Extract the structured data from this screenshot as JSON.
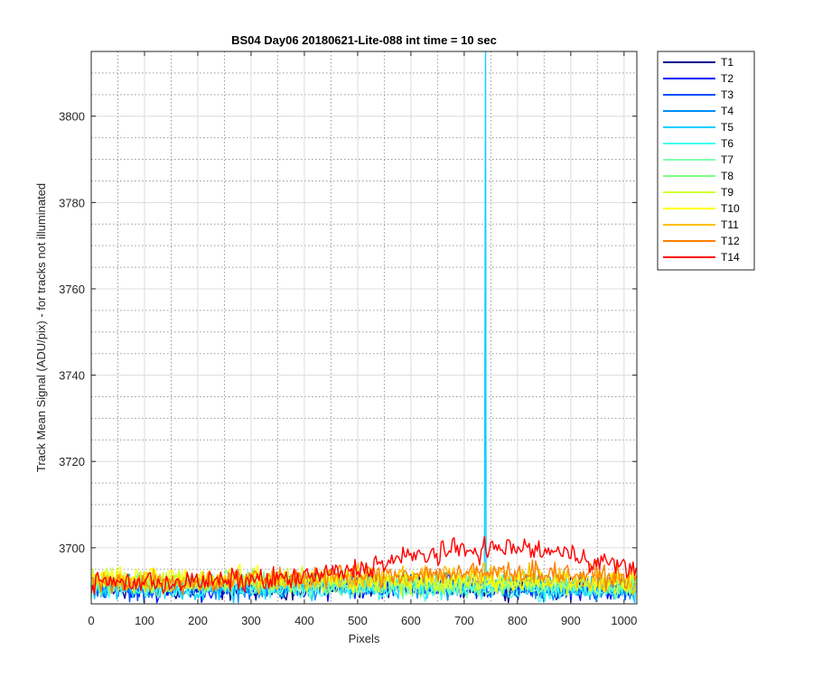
{
  "chart_data": {
    "type": "line",
    "title": "BS04 Day06 20180621-Lite-088 int time = 10 sec",
    "xlabel": "Pixels",
    "ylabel": "Track Mean Signal (ADU/pix) - for tracks not illuminated",
    "xlim": [
      0,
      1024
    ],
    "ylim": [
      3687,
      3815
    ],
    "x_ticks": [
      0,
      100,
      200,
      300,
      400,
      500,
      600,
      700,
      800,
      900,
      1000
    ],
    "y_ticks": [
      3700,
      3720,
      3740,
      3760,
      3780,
      3800
    ],
    "grid": true,
    "minor_grid": true,
    "legend_position": "outside-top-right",
    "x_sample": [
      0,
      100,
      200,
      300,
      400,
      500,
      600,
      700,
      800,
      900,
      1024
    ],
    "series": [
      {
        "name": "T1",
        "color": "#00008f",
        "values": [
          3691,
          3690.5,
          3690.5,
          3690.5,
          3691,
          3691,
          3691,
          3691,
          3691,
          3690.5,
          3690.5
        ]
      },
      {
        "name": "T2",
        "color": "#0010ff",
        "values": [
          3691,
          3690.5,
          3690.5,
          3690.5,
          3691,
          3691,
          3691,
          3691,
          3691,
          3690.5,
          3690.5
        ]
      },
      {
        "name": "T3",
        "color": "#0050ff",
        "values": [
          3691,
          3690.5,
          3690.5,
          3690.5,
          3691,
          3691,
          3691,
          3691,
          3691,
          3690.5,
          3690.5
        ]
      },
      {
        "name": "T4",
        "color": "#0090ff",
        "values": [
          3691,
          3690.5,
          3690.5,
          3690.5,
          3691,
          3691,
          3691,
          3691,
          3691,
          3690.5,
          3690.5
        ]
      },
      {
        "name": "T5",
        "color": "#10cfff",
        "values": [
          3691,
          3690.5,
          3690.5,
          3690.5,
          3691,
          3691,
          3691,
          3691,
          3691,
          3690.5,
          3690.5
        ],
        "spike": {
          "x": 740,
          "y": 3815
        }
      },
      {
        "name": "T6",
        "color": "#40ffef",
        "values": [
          3691,
          3691,
          3691,
          3691,
          3691,
          3690.5,
          3690.5,
          3690.5,
          3690.5,
          3690.5,
          3690.5
        ]
      },
      {
        "name": "T7",
        "color": "#80ffaf",
        "values": [
          3691.5,
          3691.5,
          3691.5,
          3691.5,
          3691.5,
          3691,
          3691,
          3691,
          3691,
          3691,
          3691
        ]
      },
      {
        "name": "T8",
        "color": "#80ff80",
        "values": [
          3692,
          3692,
          3692,
          3692,
          3692,
          3691.5,
          3691.5,
          3691.5,
          3691.5,
          3691.5,
          3691.5
        ]
      },
      {
        "name": "T9",
        "color": "#cfff30",
        "values": [
          3692.5,
          3692.5,
          3692.5,
          3692.5,
          3692.5,
          3692,
          3692,
          3692,
          3692,
          3692,
          3692
        ]
      },
      {
        "name": "T10",
        "color": "#ffff00",
        "values": [
          3693,
          3693,
          3693,
          3693,
          3693,
          3692.5,
          3692.5,
          3692.5,
          3692.5,
          3692.5,
          3692.5
        ]
      },
      {
        "name": "T11",
        "color": "#ffbf00",
        "values": [
          3692,
          3692,
          3692,
          3692,
          3693,
          3693,
          3693.5,
          3694,
          3694,
          3693,
          3692
        ]
      },
      {
        "name": "T12",
        "color": "#ff8000",
        "values": [
          3692,
          3692,
          3692,
          3692.5,
          3693.5,
          3693.5,
          3694,
          3694,
          3694.5,
          3694,
          3693
        ]
      },
      {
        "name": "T14",
        "color": "#ff0000",
        "values": [
          3692,
          3692,
          3692,
          3692.5,
          3693,
          3695,
          3698,
          3699.5,
          3700,
          3698.5,
          3695
        ]
      }
    ]
  }
}
